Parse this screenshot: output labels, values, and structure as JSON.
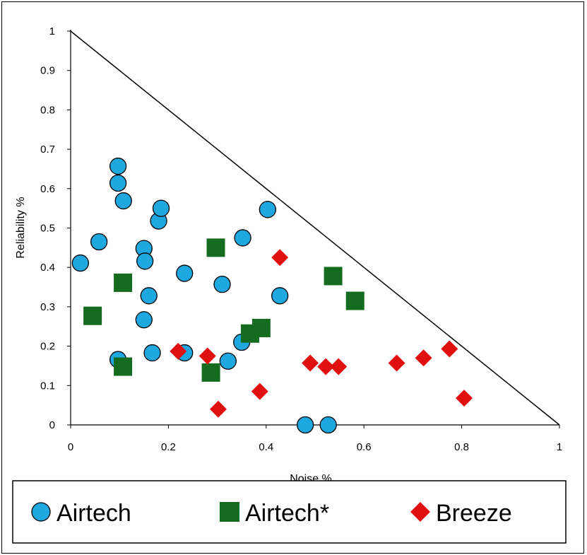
{
  "chart_data": {
    "type": "scatter",
    "title": "",
    "xlabel": "Noise %",
    "ylabel": "Reliability %",
    "xlim": [
      0,
      1
    ],
    "ylim": [
      0,
      1
    ],
    "x_ticks": [
      "0",
      "0.2",
      "0.4",
      "0.6",
      "0.8",
      "1"
    ],
    "y_ticks": [
      "0",
      "0.1",
      "0.2",
      "0.3",
      "0.4",
      "0.5",
      "0.6",
      "0.7",
      "0.8",
      "0.9",
      "1"
    ],
    "reference_line": {
      "from": [
        0,
        1
      ],
      "to": [
        1,
        0
      ]
    },
    "grid": false,
    "legend_position": "bottom",
    "series": [
      {
        "name": "Airtech",
        "marker": "circle",
        "color": "#1fa7e0",
        "points": [
          [
            0.097,
            0.657
          ],
          [
            0.097,
            0.614
          ],
          [
            0.108,
            0.569
          ],
          [
            0.058,
            0.465
          ],
          [
            0.02,
            0.411
          ],
          [
            0.15,
            0.448
          ],
          [
            0.152,
            0.416
          ],
          [
            0.18,
            0.518
          ],
          [
            0.185,
            0.55
          ],
          [
            0.16,
            0.328
          ],
          [
            0.15,
            0.267
          ],
          [
            0.097,
            0.166
          ],
          [
            0.167,
            0.183
          ],
          [
            0.233,
            0.385
          ],
          [
            0.233,
            0.183
          ],
          [
            0.31,
            0.357
          ],
          [
            0.352,
            0.475
          ],
          [
            0.403,
            0.547
          ],
          [
            0.428,
            0.328
          ],
          [
            0.35,
            0.21
          ],
          [
            0.322,
            0.162
          ],
          [
            0.48,
            0.0
          ],
          [
            0.527,
            0.0
          ]
        ]
      },
      {
        "name": "Airtech*",
        "marker": "square",
        "color": "#156b1f",
        "points": [
          [
            0.045,
            0.277
          ],
          [
            0.107,
            0.361
          ],
          [
            0.107,
            0.148
          ],
          [
            0.297,
            0.45
          ],
          [
            0.287,
            0.133
          ],
          [
            0.367,
            0.232
          ],
          [
            0.39,
            0.246
          ],
          [
            0.537,
            0.378
          ],
          [
            0.582,
            0.315
          ]
        ]
      },
      {
        "name": "Breeze",
        "marker": "diamond",
        "color": "#e01010",
        "points": [
          [
            0.428,
            0.425
          ],
          [
            0.22,
            0.187
          ],
          [
            0.28,
            0.175
          ],
          [
            0.302,
            0.04
          ],
          [
            0.387,
            0.085
          ],
          [
            0.49,
            0.157
          ],
          [
            0.522,
            0.148
          ],
          [
            0.548,
            0.148
          ],
          [
            0.667,
            0.157
          ],
          [
            0.722,
            0.17
          ],
          [
            0.775,
            0.193
          ],
          [
            0.805,
            0.068
          ]
        ]
      }
    ]
  }
}
